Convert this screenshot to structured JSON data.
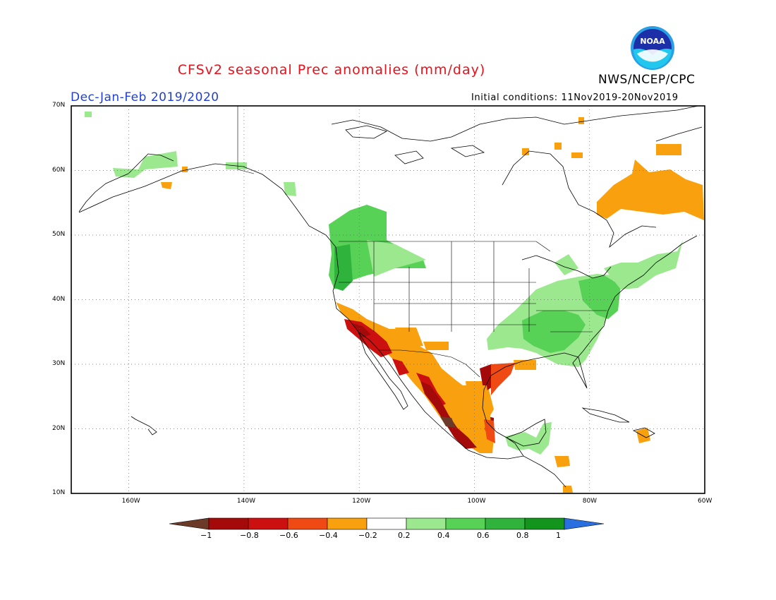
{
  "header": {
    "title": "CFSv2 seasonal Prec anomalies (mm/day)",
    "season": "Dec-Jan-Feb 2019/2020",
    "initial_conditions": "Initial conditions: 11Nov2019-20Nov2019",
    "org": "NWS/NCEP/CPC",
    "logo_text": "NOAA",
    "logo_icon": "noaa-logo"
  },
  "map": {
    "projection": "cylindrical",
    "lon_range": [
      -170,
      -60
    ],
    "lat_range": [
      10,
      70
    ],
    "lat_labels": [
      "70N",
      "60N",
      "50N",
      "40N",
      "30N",
      "20N",
      "10N"
    ],
    "lon_labels": [
      "160W",
      "140W",
      "120W",
      "100W",
      "80W",
      "60W"
    ],
    "grid": "dotted",
    "colors": {
      "<-1": "#6b3a28",
      "-1:-0.8": "#a50a0a",
      "-0.8:-0.6": "#cc1010",
      "-0.6:-0.4": "#ef4a14",
      "-0.4:-0.2": "#f9a00f",
      "-0.2:0.2": "#ffffff",
      "0.2:0.4": "#9be88f",
      "0.4:0.6": "#58d256",
      "0.6:0.8": "#2fb33c",
      "0.8:1": "#13941c",
      ">1": "#2a6fe0"
    },
    "regions": [
      {
        "name": "pacific-northwest",
        "category": "0.4:0.6"
      },
      {
        "name": "western-oregon-coast",
        "category": "0.6:0.8"
      },
      {
        "name": "inland-northwest",
        "category": "0.2:0.4"
      },
      {
        "name": "alaska-wet-spots",
        "category": "0.2:0.4"
      },
      {
        "name": "ohio-tennessee-valley",
        "category": "0.2:0.4"
      },
      {
        "name": "tennessee-valley-core",
        "category": "0.4:0.6"
      },
      {
        "name": "mid-atlantic",
        "category": "0.4:0.6"
      },
      {
        "name": "new-england",
        "category": "0.2:0.4"
      },
      {
        "name": "california-mexico-dry",
        "category": "-0.4:-0.2"
      },
      {
        "name": "southern-california-dry",
        "category": "-0.8:-0.6"
      },
      {
        "name": "west-mexico-dry-core",
        "category": "-1:-0.8"
      },
      {
        "name": "west-mexico-extreme",
        "category": "<-1"
      },
      {
        "name": "east-mexico-dry",
        "category": "-0.4:-0.2"
      },
      {
        "name": "gulf-coast-dry",
        "category": "-0.6:-0.4"
      },
      {
        "name": "quebec-labrador-dry",
        "category": "-0.4:-0.2"
      },
      {
        "name": "central-america-wet",
        "category": "0.2:0.4"
      },
      {
        "name": "caribbean-spots",
        "category": "-0.4:-0.2"
      }
    ]
  },
  "colorbar": {
    "labels": [
      "-1",
      "-0.8",
      "-0.6",
      "-0.4",
      "-0.2",
      "0.2",
      "0.4",
      "0.6",
      "0.8",
      "1"
    ],
    "colors": [
      "#6b3a28",
      "#a50a0a",
      "#cc1010",
      "#ef4a14",
      "#f9a00f",
      "#ffffff",
      "#9be88f",
      "#58d256",
      "#2fb33c",
      "#13941c",
      "#2a6fe0"
    ]
  }
}
